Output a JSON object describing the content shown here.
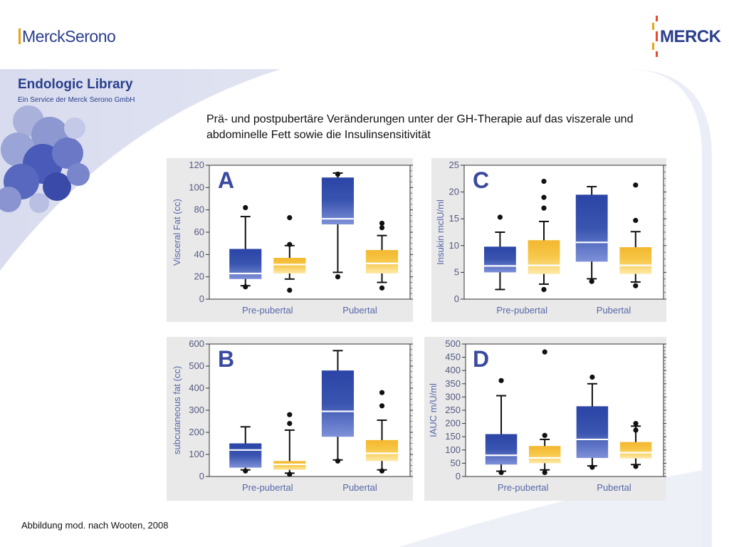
{
  "header": {
    "logo_left": "MerckSerono",
    "logo_right": "MERCK"
  },
  "library": {
    "title": "Endologic Library",
    "subtitle": "Ein Service der Merck Serono GmbH"
  },
  "slide": {
    "title": "Prä- und postpubertäre Veränderungen unter der GH-Therapie auf das viszerale und abdominelle Fett sowie die Insulinsensitivität",
    "caption": "Abbildung mod. nach Wooten, 2008"
  },
  "colors": {
    "blue_box": "#3a55b0",
    "yellow_box": "#f7c84a",
    "median": "#ffffff",
    "brand": "#2a3e8c",
    "accent": "#e8a317"
  },
  "chart_data": [
    {
      "id": "A",
      "type": "boxplot",
      "panel_letter": "A",
      "ylabel": "Visceral Fat (cc)",
      "ylim": [
        0,
        120
      ],
      "yticks": [
        0,
        20,
        40,
        60,
        80,
        100,
        120
      ],
      "categories": [
        "Pre-pubertal",
        "Pubertal"
      ],
      "groups": [
        {
          "category": "Pre-pubertal",
          "color": "blue",
          "whisker_low": 12,
          "q1": 18,
          "median": 23,
          "q3": 45,
          "whisker_high": 74,
          "outliers": [
            11,
            82
          ]
        },
        {
          "category": "Pre-pubertal",
          "color": "yellow",
          "whisker_low": 18,
          "q1": 23,
          "median": 31,
          "q3": 37,
          "whisker_high": 48,
          "outliers": [
            8,
            49,
            73
          ]
        },
        {
          "category": "Pubertal",
          "color": "blue",
          "whisker_low": 24,
          "q1": 67,
          "median": 72,
          "q3": 109,
          "whisker_high": 113,
          "outliers": [
            20,
            112
          ]
        },
        {
          "category": "Pubertal",
          "color": "yellow",
          "whisker_low": 15,
          "q1": 23,
          "median": 32,
          "q3": 44,
          "whisker_high": 57,
          "outliers": [
            10,
            64,
            68
          ]
        }
      ]
    },
    {
      "id": "C",
      "type": "boxplot",
      "panel_letter": "C",
      "ylabel": "Insukin mclU/ml",
      "ylim": [
        0,
        25
      ],
      "yticks": [
        0,
        5,
        10,
        15,
        20,
        25
      ],
      "categories": [
        "Pre-pubertal",
        "Pubertal"
      ],
      "groups": [
        {
          "category": "Pre-pubertal",
          "color": "blue",
          "whisker_low": 1.8,
          "q1": 5,
          "median": 6.2,
          "q3": 9.8,
          "whisker_high": 12.5,
          "outliers": [
            15.3
          ]
        },
        {
          "category": "Pre-pubertal",
          "color": "yellow",
          "whisker_low": 2.8,
          "q1": 4.7,
          "median": 6.3,
          "q3": 11,
          "whisker_high": 14.5,
          "outliers": [
            1.8,
            17,
            19,
            22
          ]
        },
        {
          "category": "Pubertal",
          "color": "blue",
          "whisker_low": 3.8,
          "q1": 7,
          "median": 10.6,
          "q3": 19.5,
          "whisker_high": 21,
          "outliers": [
            3.3
          ]
        },
        {
          "category": "Pubertal",
          "color": "yellow",
          "whisker_low": 3.2,
          "q1": 4.7,
          "median": 6.3,
          "q3": 9.7,
          "whisker_high": 12.6,
          "outliers": [
            2.5,
            14.7,
            21.3
          ]
        }
      ]
    },
    {
      "id": "B",
      "type": "boxplot",
      "panel_letter": "B",
      "ylabel": "subcutaneous fat (cc)",
      "ylim": [
        0,
        600
      ],
      "yticks": [
        0,
        100,
        200,
        300,
        400,
        500,
        600
      ],
      "categories": [
        "Pre-pubertal",
        "Pubertal"
      ],
      "groups": [
        {
          "category": "Pre-pubertal",
          "color": "blue",
          "whisker_low": 30,
          "q1": 40,
          "median": 120,
          "q3": 150,
          "whisker_high": 225,
          "outliers": [
            25
          ]
        },
        {
          "category": "Pre-pubertal",
          "color": "yellow",
          "whisker_low": 15,
          "q1": 30,
          "median": 55,
          "q3": 70,
          "whisker_high": 210,
          "outliers": [
            10,
            240,
            280
          ]
        },
        {
          "category": "Pubertal",
          "color": "blue",
          "whisker_low": 75,
          "q1": 180,
          "median": 295,
          "q3": 480,
          "whisker_high": 570,
          "outliers": [
            70
          ]
        },
        {
          "category": "Pubertal",
          "color": "yellow",
          "whisker_low": 30,
          "q1": 70,
          "median": 105,
          "q3": 165,
          "whisker_high": 255,
          "outliers": [
            25,
            320,
            380
          ]
        }
      ]
    },
    {
      "id": "D",
      "type": "boxplot",
      "panel_letter": "D",
      "ylabel": "IAUC m/U/ml",
      "ylim": [
        0,
        500
      ],
      "yticks": [
        0,
        50,
        100,
        150,
        200,
        250,
        300,
        350,
        400,
        450,
        500
      ],
      "categories": [
        "Pre-pubertal",
        "Pubertal"
      ],
      "groups": [
        {
          "category": "Pre-pubertal",
          "color": "blue",
          "whisker_low": 20,
          "q1": 45,
          "median": 80,
          "q3": 160,
          "whisker_high": 305,
          "outliers": [
            15,
            362
          ]
        },
        {
          "category": "Pre-pubertal",
          "color": "yellow",
          "whisker_low": 25,
          "q1": 50,
          "median": 70,
          "q3": 115,
          "whisker_high": 140,
          "outliers": [
            15,
            155,
            470
          ]
        },
        {
          "category": "Pubertal",
          "color": "blue",
          "whisker_low": 40,
          "q1": 70,
          "median": 140,
          "q3": 265,
          "whisker_high": 350,
          "outliers": [
            35,
            375
          ]
        },
        {
          "category": "Pubertal",
          "color": "yellow",
          "whisker_low": 45,
          "q1": 68,
          "median": 90,
          "q3": 130,
          "whisker_high": 190,
          "outliers": [
            38,
            175,
            200
          ]
        }
      ]
    }
  ]
}
